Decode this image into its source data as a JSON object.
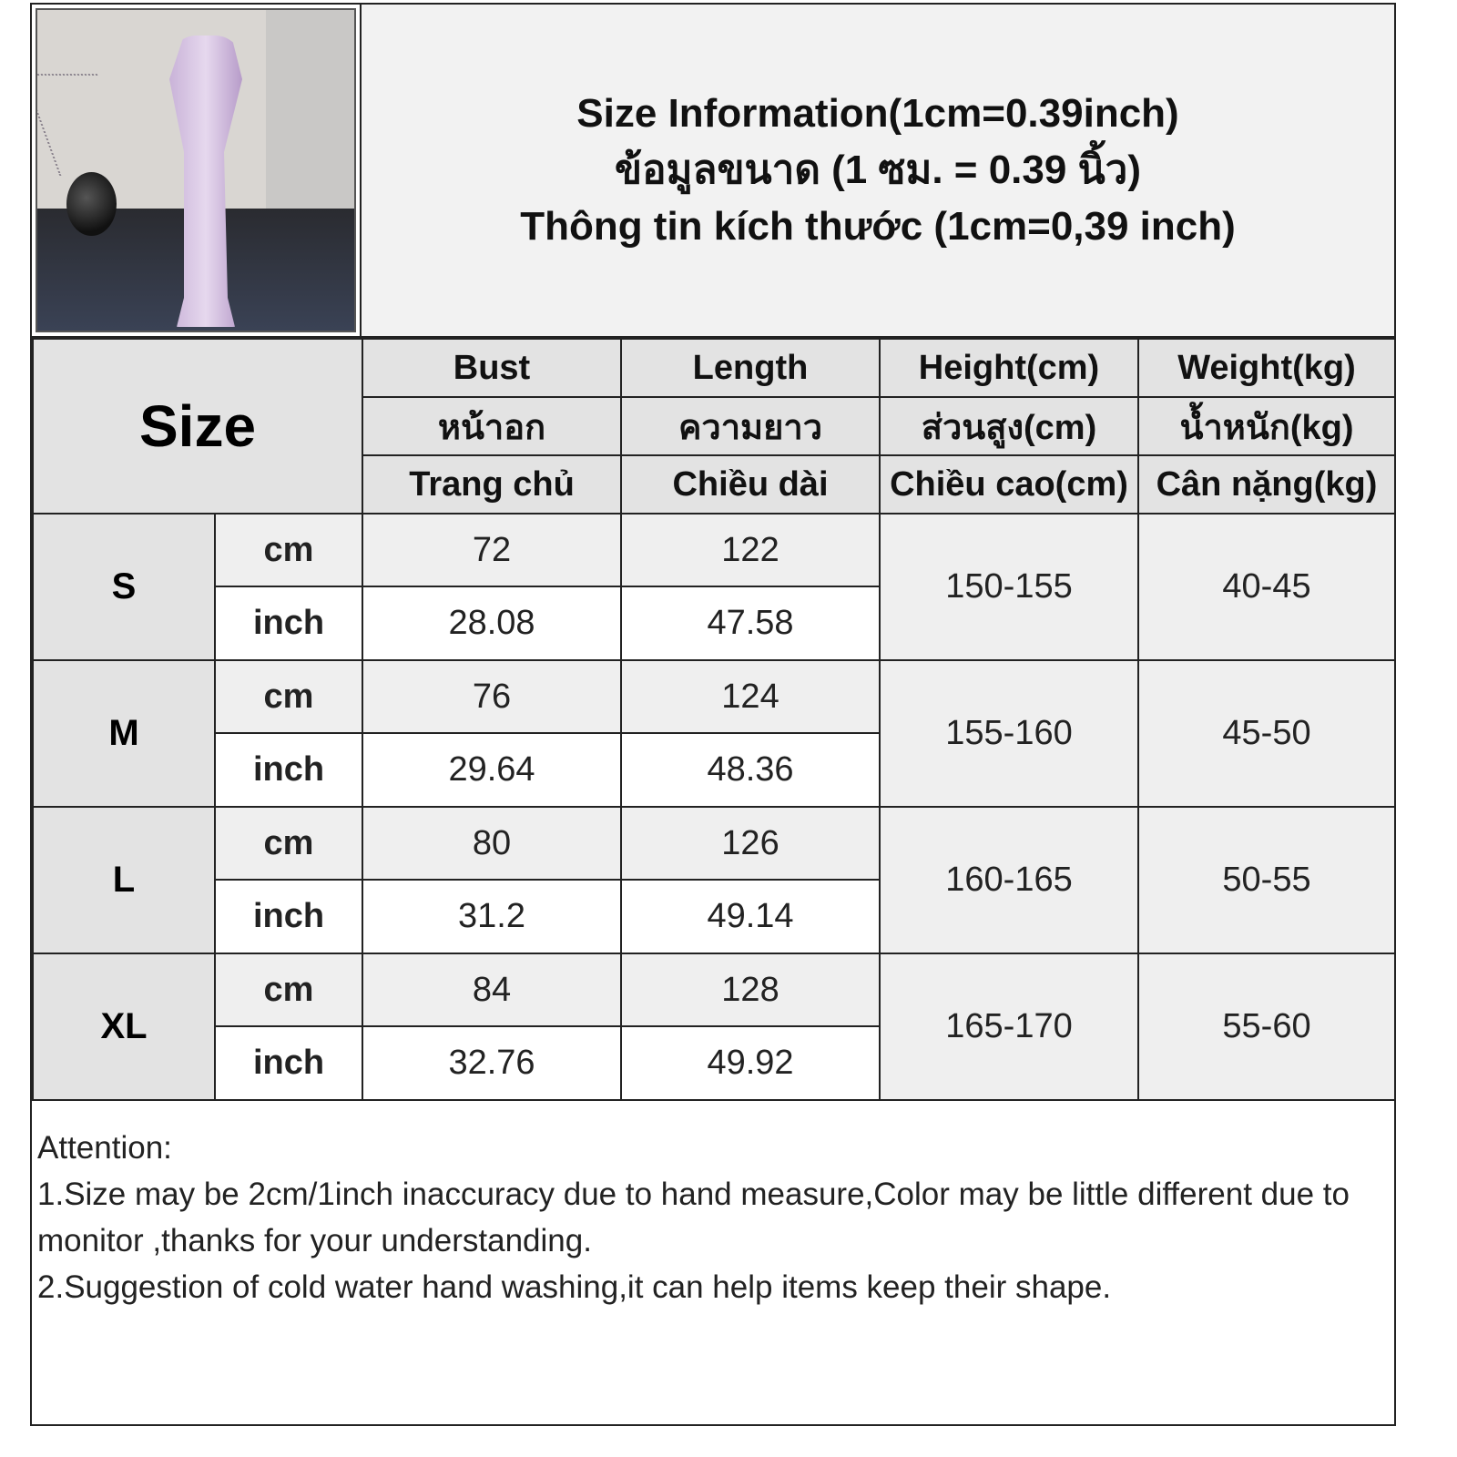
{
  "title": {
    "en": "Size Information(1cm=0.39inch)",
    "th": "ข้อมูลขนาด (1 ซม. = 0.39 นิ้ว)",
    "vi": "Thông tin kích thước (1cm=0,39 inch)"
  },
  "product_photo": "purple floral off-shoulder mermaid maxi dress",
  "table": {
    "size_label": "Size",
    "columns": [
      {
        "en": "Bust",
        "th": "หน้าอก",
        "vi": "Trang chủ"
      },
      {
        "en": "Length",
        "th": "ความยาว",
        "vi": "Chiều dài"
      },
      {
        "en": "Height(cm)",
        "th": "ส่วนสูง(cm)",
        "vi": "Chiều cao(cm)"
      },
      {
        "en": "Weight(kg)",
        "th": "น้ำหนัก(kg)",
        "vi": "Cân nặng(kg)"
      }
    ],
    "unit_cm": "cm",
    "unit_inch": "inch",
    "rows": [
      {
        "size": "S",
        "bust_cm": "72",
        "length_cm": "122",
        "bust_inch": "28.08",
        "length_inch": "47.58",
        "height": "150-155",
        "weight": "40-45"
      },
      {
        "size": "M",
        "bust_cm": "76",
        "length_cm": "124",
        "bust_inch": "29.64",
        "length_inch": "48.36",
        "height": "155-160",
        "weight": "45-50"
      },
      {
        "size": "L",
        "bust_cm": "80",
        "length_cm": "126",
        "bust_inch": "31.2",
        "length_inch": "49.14",
        "height": "160-165",
        "weight": "50-55"
      },
      {
        "size": "XL",
        "bust_cm": "84",
        "length_cm": "128",
        "bust_inch": "32.76",
        "length_inch": "49.92",
        "height": "165-170",
        "weight": "55-60"
      }
    ]
  },
  "notes": {
    "heading": "Attention:",
    "line1": "1.Size may be 2cm/1inch inaccuracy due to hand measure,Color may be little different due to monitor ,thanks for your understanding.",
    "line2": "2.Suggestion of cold water hand washing,it can help items keep their shape."
  }
}
